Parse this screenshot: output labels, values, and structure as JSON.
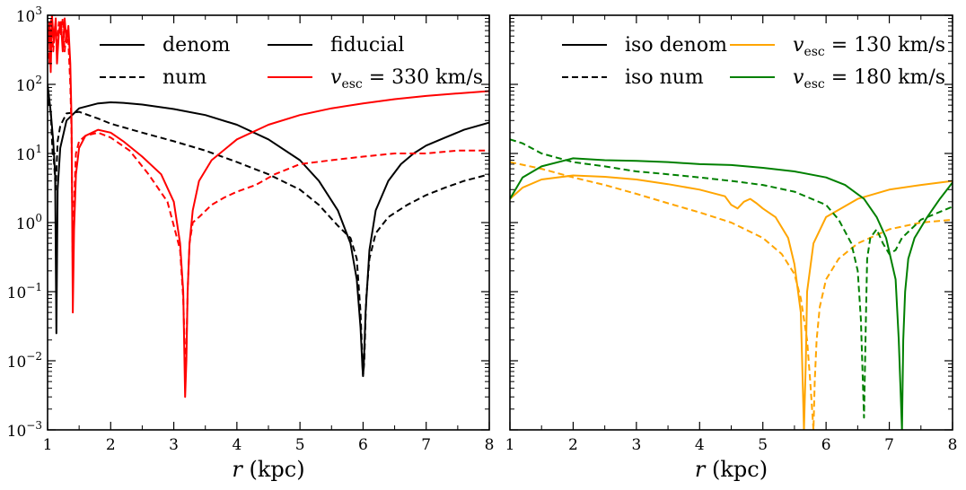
{
  "chart_data": [
    {
      "type": "line",
      "panel": "left",
      "xlabel": "r (kpc)",
      "xlim": [
        1,
        8
      ],
      "ylim": [
        0.001,
        1000
      ],
      "yscale": "log",
      "xticks": [
        "1",
        "2",
        "3",
        "4",
        "5",
        "6",
        "7",
        "8"
      ],
      "yticks": [
        {
          "base": "10",
          "exp": "−3"
        },
        {
          "base": "10",
          "exp": "−2"
        },
        {
          "base": "10",
          "exp": "−1"
        },
        {
          "base": "10",
          "exp": "0"
        },
        {
          "base": "10",
          "exp": "1"
        },
        {
          "base": "10",
          "exp": "2"
        },
        {
          "base": "10",
          "exp": "3"
        }
      ],
      "legend": [
        {
          "label": "denom",
          "color": "#000000",
          "dash": "solid",
          "col": 0,
          "row": 0
        },
        {
          "label": "num",
          "color": "#000000",
          "dash": "dashed",
          "col": 0,
          "row": 1
        },
        {
          "label": "fiducial",
          "color": "#000000",
          "dash": "solid",
          "col": 1,
          "row": 0
        },
        {
          "label": "v",
          "sub": "esc",
          "rest": " = 330 km/s",
          "color": "#ff0000",
          "dash": "solid",
          "col": 1,
          "row": 1
        }
      ],
      "series": [
        {
          "name": "fiducial denom",
          "color": "#000000",
          "dash": "solid",
          "x": [
            1.0,
            1.05,
            1.09,
            1.12,
            1.14,
            1.16,
            1.2,
            1.3,
            1.5,
            1.8,
            2.0,
            2.2,
            2.5,
            3.0,
            3.5,
            4.0,
            4.5,
            5.0,
            5.3,
            5.6,
            5.8,
            5.9,
            5.96,
            5.99,
            6.0,
            6.01,
            6.04,
            6.1,
            6.2,
            6.4,
            6.6,
            6.8,
            7.0,
            7.3,
            7.6,
            8.0
          ],
          "y": [
            100,
            40,
            15,
            5,
            0.025,
            3,
            12,
            30,
            45,
            53,
            55,
            54,
            51,
            44,
            36,
            26,
            16,
            8,
            4,
            1.5,
            0.5,
            0.15,
            0.03,
            0.008,
            0.006,
            0.008,
            0.05,
            0.4,
            1.5,
            4,
            7,
            10,
            13,
            17,
            22,
            28
          ]
        },
        {
          "name": "fiducial num",
          "color": "#000000",
          "dash": "dashed",
          "x": [
            1.0,
            1.05,
            1.08,
            1.1,
            1.13,
            1.16,
            1.2,
            1.3,
            1.5,
            1.8,
            2.0,
            2.5,
            3.0,
            3.5,
            4.0,
            4.5,
            5.0,
            5.3,
            5.6,
            5.8,
            5.9,
            5.96,
            5.99,
            6.0,
            6.02,
            6.05,
            6.1,
            6.2,
            6.4,
            6.7,
            7.0,
            7.3,
            7.6,
            8.0
          ],
          "y": [
            60,
            40,
            10,
            8,
            3,
            15,
            25,
            38,
            40,
            32,
            27,
            20,
            15,
            11,
            7.5,
            5,
            3,
            1.8,
            0.9,
            0.6,
            0.3,
            0.05,
            0.01,
            0.006,
            0.01,
            0.08,
            0.3,
            0.7,
            1.2,
            1.8,
            2.5,
            3.2,
            4,
            5
          ]
        },
        {
          "name": "vesc330 denom",
          "color": "#ff0000",
          "dash": "solid",
          "x": [
            1.0,
            1.03,
            1.05,
            1.07,
            1.1,
            1.13,
            1.15,
            1.18,
            1.21,
            1.24,
            1.27,
            1.3,
            1.33,
            1.36,
            1.38,
            1.4,
            1.42,
            1.45,
            1.5,
            1.6,
            1.8,
            2.0,
            2.2,
            2.5,
            2.8,
            3.0,
            3.1,
            3.15,
            3.18,
            3.2,
            3.22,
            3.25,
            3.3,
            3.4,
            3.6,
            4.0,
            4.5,
            5.0,
            5.5,
            6.0,
            6.5,
            7.0,
            7.5,
            8.0
          ],
          "y": [
            300,
            800,
            150,
            1000,
            400,
            900,
            200,
            600,
            800,
            300,
            900,
            400,
            700,
            200,
            30,
            0.05,
            0.8,
            5,
            12,
            18,
            22,
            20,
            15,
            9,
            5,
            2,
            0.5,
            0.1,
            0.003,
            0.01,
            0.1,
            0.5,
            1.5,
            4,
            8,
            16,
            26,
            36,
            45,
            53,
            61,
            68,
            74,
            80
          ]
        },
        {
          "name": "vesc330 num",
          "color": "#ff0000",
          "dash": "dashed",
          "x": [
            1.0,
            1.03,
            1.06,
            1.09,
            1.12,
            1.15,
            1.18,
            1.21,
            1.24,
            1.27,
            1.3,
            1.33,
            1.36,
            1.38,
            1.4,
            1.42,
            1.45,
            1.5,
            1.6,
            1.8,
            2.0,
            2.3,
            2.6,
            2.9,
            3.0,
            3.1,
            3.15,
            3.18,
            3.2,
            3.22,
            3.25,
            3.3,
            3.4,
            3.6,
            3.8,
            4.0,
            4.3,
            4.6,
            5.0,
            5.5,
            6.0,
            6.5,
            7.0,
            7.5,
            8.0
          ],
          "y": [
            400,
            200,
            900,
            300,
            700,
            400,
            800,
            500,
            900,
            300,
            600,
            400,
            100,
            20,
            0.2,
            2,
            10,
            15,
            18,
            20,
            17,
            11,
            5,
            2,
            0.9,
            0.4,
            0.08,
            0.01,
            0.015,
            0.1,
            0.5,
            1,
            1.2,
            1.8,
            2.3,
            2.8,
            3.5,
            5,
            7,
            8,
            9,
            10,
            10,
            11,
            11
          ]
        }
      ]
    },
    {
      "type": "line",
      "panel": "right",
      "xlabel": "r (kpc)",
      "xlim": [
        1,
        8
      ],
      "ylim": [
        0.001,
        1000
      ],
      "yscale": "log",
      "xticks": [
        "1",
        "2",
        "3",
        "4",
        "5",
        "6",
        "7",
        "8"
      ],
      "legend": [
        {
          "label": "iso denom",
          "color": "#000000",
          "dash": "solid",
          "col": 0,
          "row": 0
        },
        {
          "label": "iso num",
          "color": "#000000",
          "dash": "dashed",
          "col": 0,
          "row": 1
        },
        {
          "label": "v",
          "sub": "esc",
          "rest": " = 130 km/s",
          "color": "#ffa500",
          "dash": "solid",
          "col": 1,
          "row": 0
        },
        {
          "label": "v",
          "sub": "esc",
          "rest": " = 180 km/s",
          "color": "#008000",
          "dash": "solid",
          "col": 1,
          "row": 1
        }
      ],
      "series": [
        {
          "name": "vesc130 denom",
          "color": "#ffa500",
          "dash": "solid",
          "x": [
            1.0,
            1.2,
            1.5,
            2.0,
            2.5,
            3.0,
            3.5,
            4.0,
            4.4,
            4.5,
            4.6,
            4.7,
            4.8,
            4.9,
            5.0,
            5.2,
            5.4,
            5.5,
            5.6,
            5.63,
            5.65,
            5.68,
            5.7,
            5.8,
            6.0,
            6.5,
            7.0,
            7.5,
            8.0
          ],
          "y": [
            2.2,
            3.2,
            4.2,
            4.8,
            4.6,
            4.2,
            3.6,
            3.0,
            2.4,
            1.8,
            1.6,
            2,
            2.2,
            1.9,
            1.6,
            1.2,
            0.6,
            0.25,
            0.05,
            0.005,
            0.001,
            0.01,
            0.1,
            0.5,
            1.2,
            2.2,
            3.0,
            3.5,
            4.0
          ]
        },
        {
          "name": "vesc130 num",
          "color": "#ffa500",
          "dash": "dashed",
          "x": [
            1.0,
            1.5,
            2.0,
            2.5,
            3.0,
            3.5,
            4.0,
            4.5,
            5.0,
            5.3,
            5.5,
            5.6,
            5.7,
            5.75,
            5.8,
            5.82,
            5.85,
            5.9,
            6.0,
            6.2,
            6.5,
            7.0,
            7.5,
            8.0
          ],
          "y": [
            7.5,
            6.0,
            4.5,
            3.5,
            2.6,
            1.9,
            1.4,
            1.0,
            0.6,
            0.35,
            0.18,
            0.08,
            0.02,
            0.005,
            0.001,
            0.005,
            0.02,
            0.06,
            0.15,
            0.3,
            0.5,
            0.8,
            1.0,
            1.1
          ]
        },
        {
          "name": "vesc180 denom",
          "color": "#008000",
          "dash": "solid",
          "x": [
            1.0,
            1.2,
            1.5,
            2.0,
            2.5,
            3.0,
            3.5,
            4.0,
            4.5,
            5.0,
            5.5,
            6.0,
            6.3,
            6.6,
            6.8,
            6.95,
            7.1,
            7.15,
            7.2,
            7.22,
            7.25,
            7.3,
            7.4,
            7.6,
            7.8,
            8.0
          ],
          "y": [
            2.2,
            4.5,
            6.5,
            8.5,
            8.0,
            7.8,
            7.5,
            7.0,
            6.8,
            6.2,
            5.5,
            4.5,
            3.5,
            2.2,
            1.2,
            0.6,
            0.15,
            0.02,
            0.001,
            0.02,
            0.1,
            0.3,
            0.6,
            1.2,
            2.2,
            3.8
          ]
        },
        {
          "name": "vesc180 num",
          "color": "#008000",
          "dash": "dashed",
          "x": [
            1.0,
            1.2,
            1.5,
            2.0,
            2.5,
            3.0,
            3.5,
            4.0,
            4.5,
            5.0,
            5.5,
            6.0,
            6.2,
            6.4,
            6.5,
            6.55,
            6.6,
            6.63,
            6.65,
            6.7,
            6.8,
            6.9,
            7.0,
            7.1,
            7.2,
            7.5,
            8.0
          ],
          "y": [
            16,
            14,
            10,
            7.5,
            6.5,
            5.5,
            5.0,
            4.5,
            4.0,
            3.5,
            2.8,
            1.8,
            1.1,
            0.5,
            0.2,
            0.04,
            0.0015,
            0.04,
            0.3,
            0.6,
            0.8,
            0.5,
            0.35,
            0.4,
            0.6,
            1.1,
            1.7
          ]
        }
      ]
    }
  ]
}
